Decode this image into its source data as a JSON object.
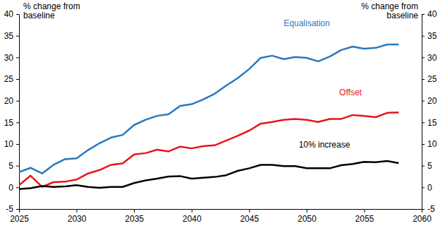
{
  "chart_data": {
    "type": "line",
    "y_label": "% change from baseline",
    "y2_label": "% change from baseline",
    "x": [
      2025,
      2026,
      2027,
      2028,
      2029,
      2030,
      2031,
      2032,
      2033,
      2034,
      2035,
      2036,
      2037,
      2038,
      2039,
      2040,
      2041,
      2042,
      2043,
      2044,
      2045,
      2046,
      2047,
      2048,
      2049,
      2050,
      2051,
      2052,
      2053,
      2054,
      2055,
      2056,
      2057,
      2058
    ],
    "series": [
      {
        "name": "Equalisation",
        "color": "#2878bd",
        "values": [
          3.5,
          4.5,
          3.2,
          5.2,
          6.5,
          6.7,
          8.6,
          10.2,
          11.5,
          12.1,
          14.4,
          15.6,
          16.5,
          16.9,
          18.8,
          19.2,
          20.3,
          21.6,
          23.5,
          25.2,
          27.3,
          29.9,
          30.4,
          29.6,
          30.1,
          29.9,
          29.1,
          30.2,
          31.7,
          32.5,
          32.0,
          32.2,
          33.0,
          33.0
        ]
      },
      {
        "name": "Offset",
        "color": "#e8141b",
        "values": [
          0.5,
          2.7,
          0.1,
          1.2,
          1.3,
          1.8,
          3.2,
          4.0,
          5.2,
          5.5,
          7.6,
          7.9,
          8.7,
          8.3,
          9.4,
          9.0,
          9.5,
          9.7,
          10.8,
          11.9,
          13.1,
          14.7,
          15.1,
          15.6,
          15.8,
          15.6,
          15.1,
          15.8,
          15.8,
          16.7,
          16.5,
          16.2,
          17.2,
          17.3
        ]
      },
      {
        "name": "10% increase",
        "color": "#000000",
        "values": [
          -0.4,
          -0.2,
          0.3,
          0.1,
          0.2,
          0.5,
          0.1,
          -0.1,
          0.1,
          0.1,
          1.0,
          1.6,
          2.0,
          2.5,
          2.6,
          2.0,
          2.2,
          2.4,
          2.8,
          3.8,
          4.4,
          5.2,
          5.2,
          4.9,
          4.9,
          4.4,
          4.4,
          4.4,
          5.1,
          5.4,
          5.9,
          5.8,
          6.1,
          5.6
        ]
      }
    ],
    "xlim": [
      2025,
      2060
    ],
    "xticks": [
      2025,
      2030,
      2035,
      2040,
      2045,
      2050,
      2055,
      2060
    ],
    "ylim": [
      -5,
      40
    ],
    "yticks": [
      -5,
      0,
      5,
      10,
      15,
      20,
      25,
      30,
      35,
      40
    ],
    "y2lim": [
      -5,
      40
    ],
    "y2ticks": [
      -5,
      0,
      5,
      10,
      15,
      20,
      25,
      30,
      35,
      40
    ],
    "grid": false
  }
}
